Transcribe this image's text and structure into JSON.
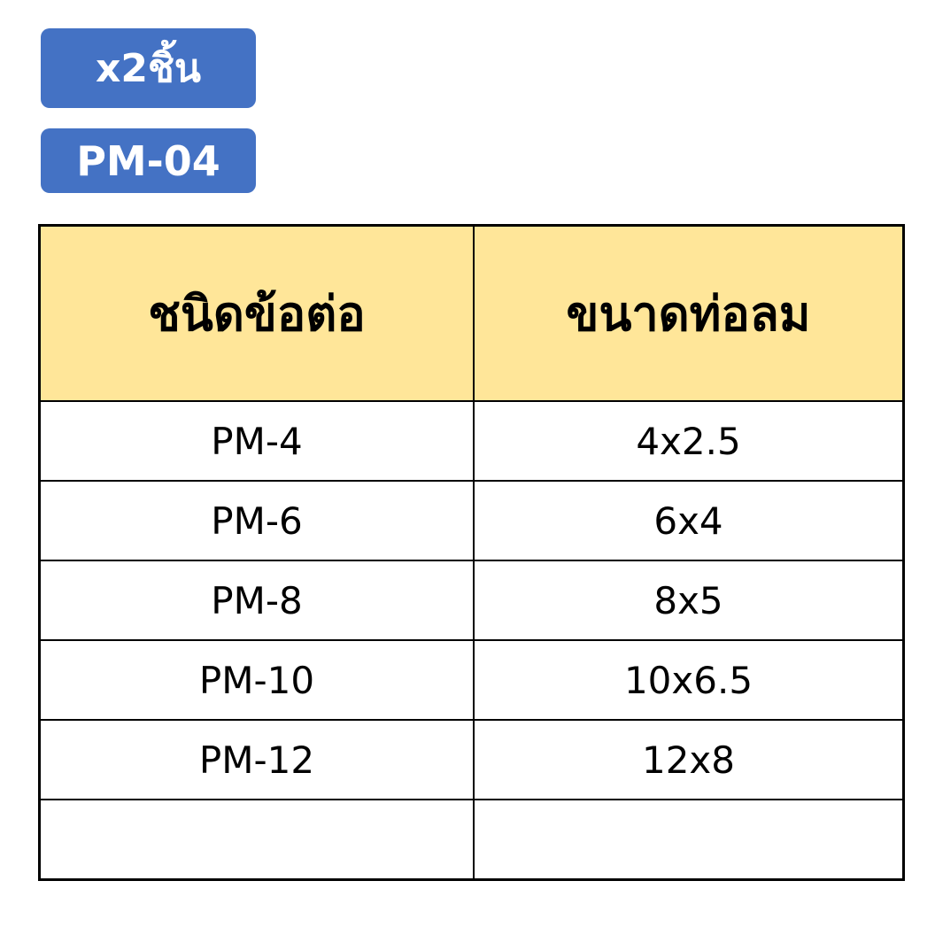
{
  "badges": {
    "quantity": "x2ชิ้น",
    "model": "PM-04"
  },
  "colors": {
    "badge": "#4472C4",
    "header": "#FFE699"
  },
  "table": {
    "headers": [
      "ชนิดข้อต่อ",
      "ขนาดท่อลม"
    ],
    "rows": [
      [
        "PM-4",
        "4x2.5"
      ],
      [
        "PM-6",
        "6x4"
      ],
      [
        "PM-8",
        "8x5"
      ],
      [
        "PM-10",
        "10x6.5"
      ],
      [
        "PM-12",
        "12x8"
      ],
      [
        "",
        ""
      ]
    ]
  }
}
